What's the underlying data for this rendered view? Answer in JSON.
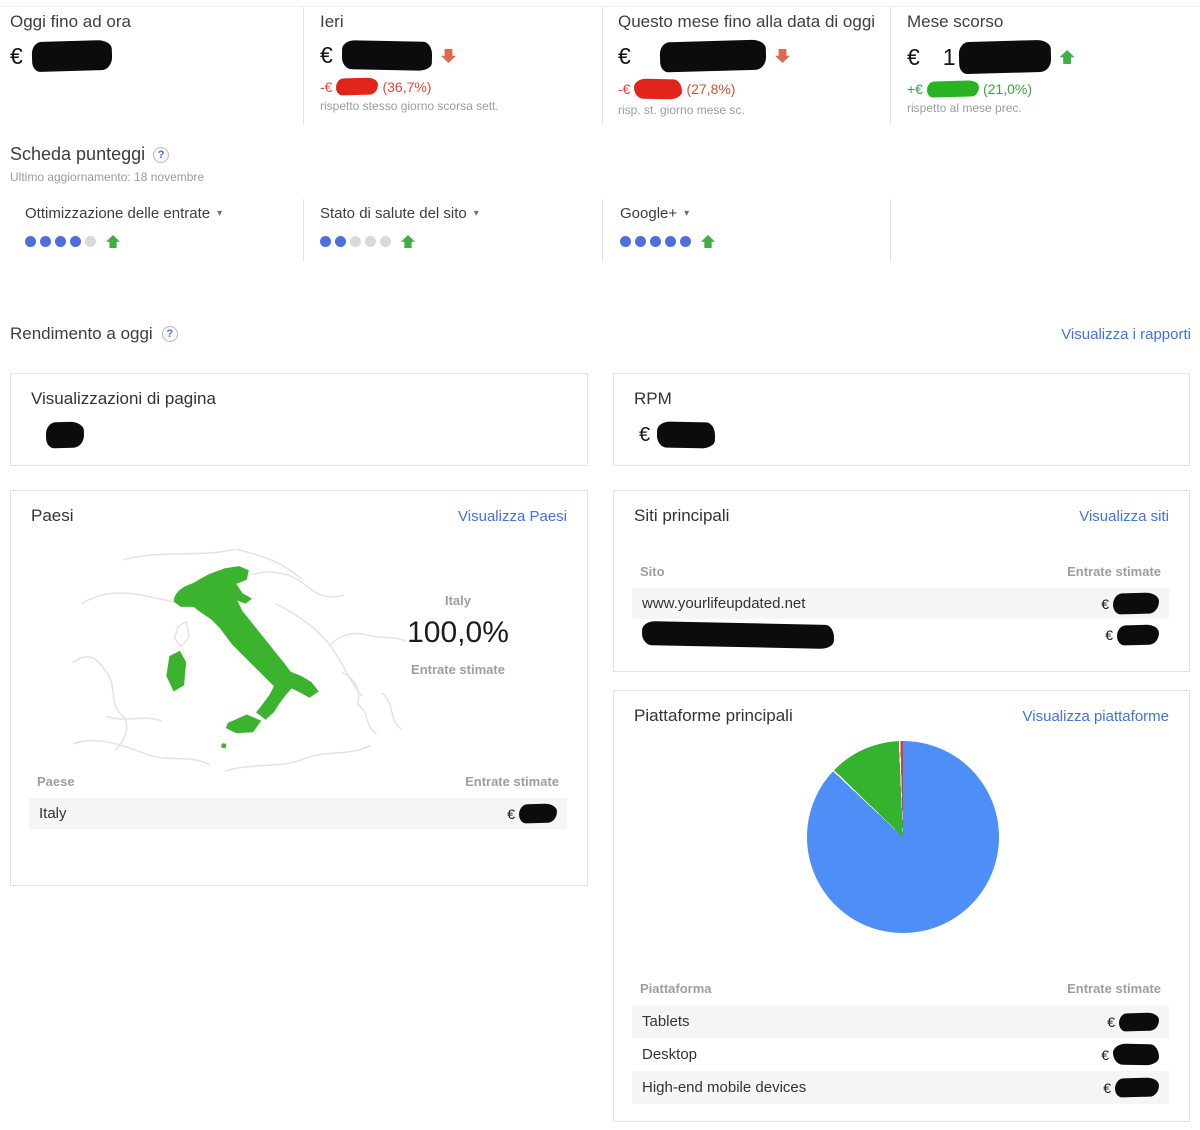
{
  "stats": {
    "cards": [
      {
        "title": "Oggi fino ad ora",
        "currency": "€"
      },
      {
        "title": "Ieri",
        "currency": "€",
        "trend": "down",
        "delta_prefix": "-€",
        "delta_pct": "(36,7%)",
        "note": "rispetto stesso giorno scorsa sett."
      },
      {
        "title": "Questo mese fino alla data di oggi",
        "currency": "€",
        "trend": "down",
        "delta_prefix": "-€",
        "delta_pct": "(27,8%)",
        "note": "risp. st. giorno mese sc."
      },
      {
        "title": "Mese scorso",
        "currency": "€",
        "visible_digit": "1",
        "trend": "up",
        "delta_prefix": "+€",
        "delta_pct": "(21,0%)",
        "note": "rispetto al mese prec."
      }
    ]
  },
  "scorecard": {
    "title": "Scheda punteggi",
    "help_glyph": "?",
    "updated": "Ultimo aggiornamento: 18 novembre",
    "items": [
      {
        "label": "Ottimizzazione delle entrate",
        "caret": "▾",
        "dots_filled": 4,
        "dots_total": 5,
        "trend": "up"
      },
      {
        "label": "Stato di salute del sito",
        "caret": "▾",
        "dots_filled": 2,
        "dots_total": 5,
        "trend": "up"
      },
      {
        "label": "Google+",
        "caret": "▾",
        "dots_filled": 5,
        "dots_total": 5,
        "trend": "up"
      }
    ]
  },
  "performance": {
    "title": "Rendimento a oggi",
    "help_glyph": "?",
    "link": "Visualizza i rapporti"
  },
  "pageviews": {
    "title": "Visualizzazioni di pagina"
  },
  "rpm": {
    "title": "RPM",
    "currency": "€"
  },
  "countries": {
    "title": "Paesi",
    "link": "Visualizza Paesi",
    "map_label": "Italy",
    "percent": "100,0%",
    "metric": "Entrate stimate",
    "col_name": "Paese",
    "col_value": "Entrate stimate",
    "rows": [
      {
        "name": "Italy",
        "currency": "€",
        "value_redacted": true
      }
    ]
  },
  "sites": {
    "title": "Siti principali",
    "link": "Visualizza siti",
    "col_name": "Sito",
    "col_value": "Entrate stimate",
    "rows": [
      {
        "name": "www.yourlifeupdated.net",
        "currency": "€",
        "value_redacted": true
      },
      {
        "name": "",
        "name_redacted": true,
        "currency": "€",
        "value_redacted": true
      }
    ]
  },
  "platforms": {
    "title": "Piattaforme principali",
    "link": "Visualizza piattaforme",
    "col_name": "Piattaforma",
    "col_value": "Entrate stimate",
    "rows": [
      {
        "name": "Tablets",
        "currency": "€",
        "value_redacted": true
      },
      {
        "name": "Desktop",
        "currency": "€",
        "value_redacted": true
      },
      {
        "name": "High-end mobile devices",
        "currency": "€",
        "value_redacted": true
      }
    ]
  },
  "chart_data": [
    {
      "type": "pie",
      "title": "Piattaforme principali",
      "categories": [
        "Tablets",
        "Desktop",
        "High-end mobile devices"
      ],
      "segments": [
        {
          "name": "blue-segment",
          "percent": 87.0,
          "color": "#4e8ef7"
        },
        {
          "name": "green-segment",
          "percent": 12.3,
          "color": "#35b22e"
        },
        {
          "name": "red-segment",
          "percent": 0.7,
          "color": "#dc3c2a"
        }
      ],
      "legend_position": "none"
    },
    {
      "type": "geo",
      "title": "Paesi",
      "regions": [
        {
          "name": "Italy",
          "value": "100,0%",
          "metric": "Entrate stimate",
          "color": "#3cb32f"
        }
      ]
    }
  ],
  "colors": {
    "link": "#4272db",
    "negative": "#dd4b39",
    "positive": "#3d9e44",
    "dot_filled": "#4d6edb",
    "dot_empty": "#d9d9d9",
    "pie_blue": "#4e8ef7",
    "pie_green": "#35b22e",
    "pie_red": "#dc3c2a",
    "map_green": "#3cb32f"
  }
}
